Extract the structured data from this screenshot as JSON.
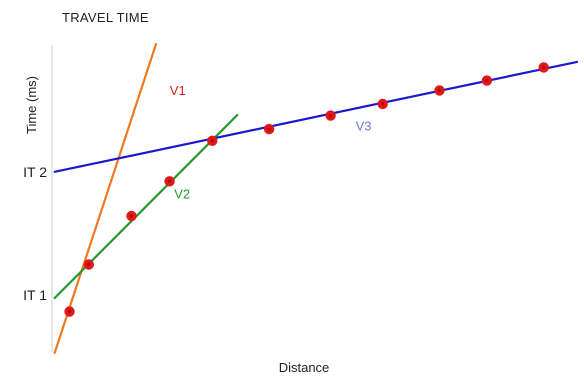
{
  "chart_data": {
    "type": "line",
    "title": "TRAVEL TIME",
    "xlabel": "Distance",
    "ylabel": "Time (ms)",
    "xlim": [
      0,
      100
    ],
    "ylim": [
      0,
      100
    ],
    "y_tick_labels": [
      {
        "label": "IT 1",
        "value": 18.5
      },
      {
        "label": "IT 2",
        "value": 58.7
      }
    ],
    "series": [
      {
        "name": "V1",
        "color": "#f07820",
        "x": [
          -0.25,
          19.2
        ],
        "y": [
          -0.3,
          100.3
        ]
      },
      {
        "name": "V2",
        "color": "#1f9a2e",
        "x": [
          -0.25,
          34.8
        ],
        "y": [
          17.6,
          77.2
        ]
      },
      {
        "name": "V3",
        "color": "#1a1acc",
        "x": [
          -0.25,
          100.0
        ],
        "y": [
          58.7,
          94.5
        ]
      }
    ],
    "points": {
      "color": "#e01818",
      "x": [
        2.6,
        6.3,
        14.5,
        21.8,
        30.0,
        40.9,
        52.7,
        62.7,
        73.6,
        82.7,
        93.6
      ],
      "y": [
        13.2,
        28.5,
        44.3,
        55.6,
        68.8,
        72.6,
        77.0,
        80.8,
        85.2,
        88.4,
        92.7
      ]
    },
    "grid": false,
    "legend": "none"
  }
}
